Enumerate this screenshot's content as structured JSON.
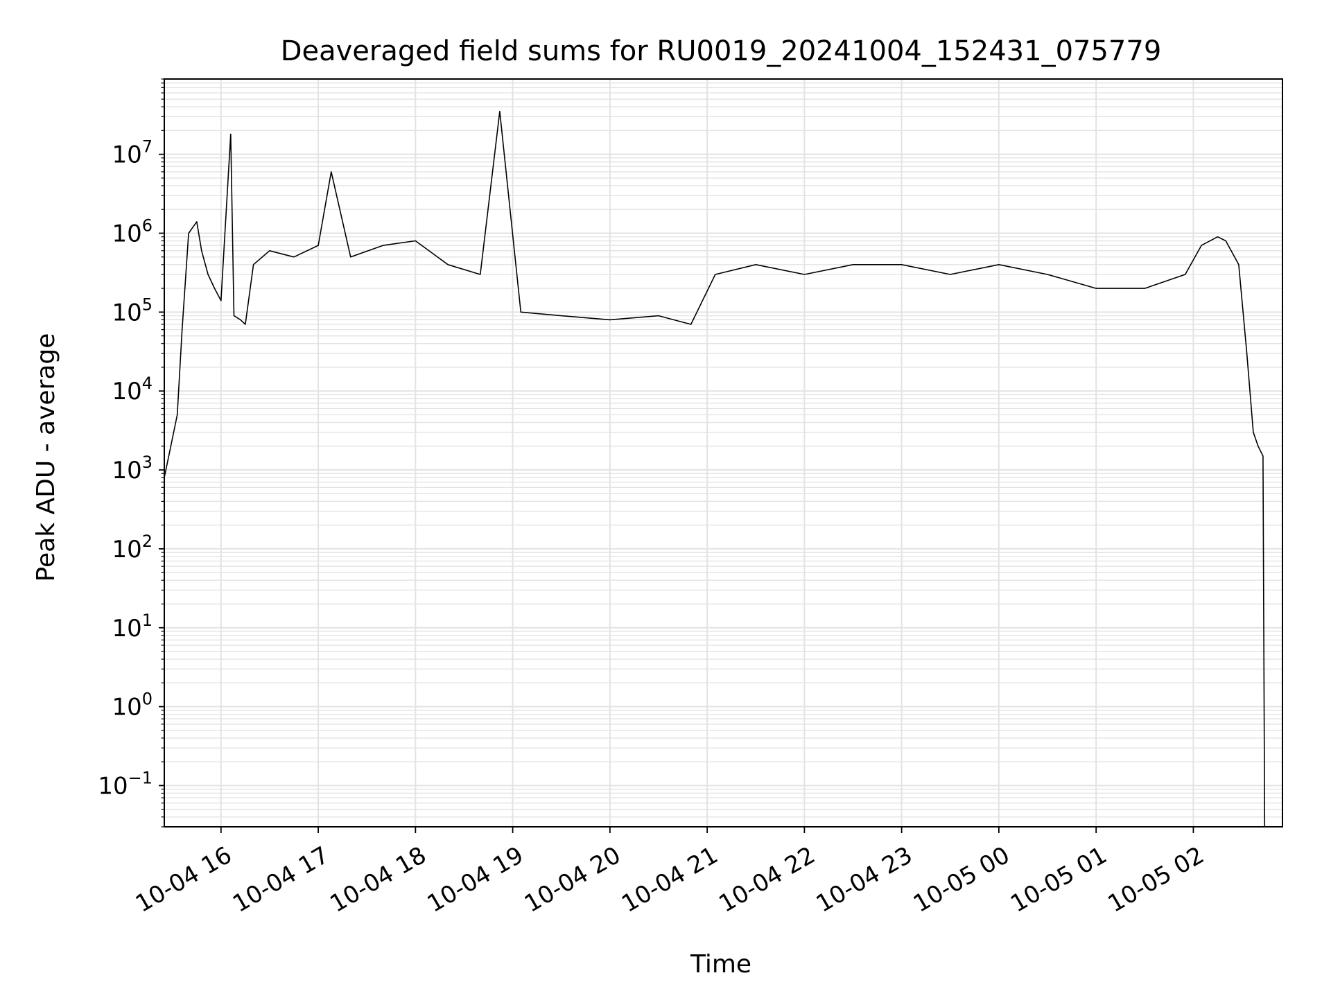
{
  "chart_data": {
    "type": "line",
    "title": "Deaveraged field sums for RU0019_20241004_152431_075779",
    "xlabel": "Time",
    "ylabel": "Peak ADU - average",
    "yscale": "log",
    "ylim": [
      0.03,
      90000000
    ],
    "xlim": [
      "2024-10-04 15:25",
      "2024-10-05 02:55"
    ],
    "grid": true,
    "line_color": "#000000",
    "grid_color": "#e3e3e3",
    "x_ticks": [
      {
        "value": "2024-10-04 16:00",
        "label": "10-04 16"
      },
      {
        "value": "2024-10-04 17:00",
        "label": "10-04 17"
      },
      {
        "value": "2024-10-04 18:00",
        "label": "10-04 18"
      },
      {
        "value": "2024-10-04 19:00",
        "label": "10-04 19"
      },
      {
        "value": "2024-10-04 20:00",
        "label": "10-04 20"
      },
      {
        "value": "2024-10-04 21:00",
        "label": "10-04 21"
      },
      {
        "value": "2024-10-04 22:00",
        "label": "10-04 22"
      },
      {
        "value": "2024-10-04 23:00",
        "label": "10-04 23"
      },
      {
        "value": "2024-10-05 00:00",
        "label": "10-05 00"
      },
      {
        "value": "2024-10-05 01:00",
        "label": "10-05 01"
      },
      {
        "value": "2024-10-05 02:00",
        "label": "10-05 02"
      }
    ],
    "y_ticks": [
      {
        "value": 0.1,
        "base": "10",
        "exp": "−1"
      },
      {
        "value": 1,
        "base": "10",
        "exp": "0"
      },
      {
        "value": 10,
        "base": "10",
        "exp": "1"
      },
      {
        "value": 100,
        "base": "10",
        "exp": "2"
      },
      {
        "value": 1000,
        "base": "10",
        "exp": "3"
      },
      {
        "value": 10000,
        "base": "10",
        "exp": "4"
      },
      {
        "value": 100000,
        "base": "10",
        "exp": "5"
      },
      {
        "value": 1000000,
        "base": "10",
        "exp": "6"
      },
      {
        "value": 10000000,
        "base": "10",
        "exp": "7"
      }
    ],
    "series": [
      {
        "x": [
          "2024-10-04 15:25",
          "2024-10-04 15:29",
          "2024-10-04 15:33",
          "2024-10-04 15:36",
          "2024-10-04 15:40",
          "2024-10-04 15:45",
          "2024-10-04 15:48",
          "2024-10-04 15:52",
          "2024-10-04 15:56",
          "2024-10-04 16:00",
          "2024-10-04 16:06",
          "2024-10-04 16:08",
          "2024-10-04 16:12",
          "2024-10-04 16:15",
          "2024-10-04 16:20",
          "2024-10-04 16:30",
          "2024-10-04 16:45",
          "2024-10-04 17:00",
          "2024-10-04 17:08",
          "2024-10-04 17:20",
          "2024-10-04 17:40",
          "2024-10-04 18:00",
          "2024-10-04 18:20",
          "2024-10-04 18:40",
          "2024-10-04 18:52",
          "2024-10-04 19:05",
          "2024-10-04 19:30",
          "2024-10-04 20:00",
          "2024-10-04 20:30",
          "2024-10-04 20:50",
          "2024-10-04 21:05",
          "2024-10-04 21:30",
          "2024-10-04 22:00",
          "2024-10-04 22:30",
          "2024-10-04 23:00",
          "2024-10-04 23:30",
          "2024-10-05 00:00",
          "2024-10-05 00:30",
          "2024-10-05 01:00",
          "2024-10-05 01:30",
          "2024-10-05 01:55",
          "2024-10-05 02:05",
          "2024-10-05 02:15",
          "2024-10-05 02:20",
          "2024-10-05 02:28",
          "2024-10-05 02:33",
          "2024-10-05 02:37",
          "2024-10-05 02:40",
          "2024-10-05 02:43",
          "2024-10-05 02:44"
        ],
        "y": [
          800,
          2000,
          5000,
          60000,
          1000000,
          1400000,
          600000,
          300000,
          200000,
          140000,
          18000000,
          90000,
          80000,
          70000,
          400000,
          600000,
          500000,
          700000,
          6000000,
          500000,
          700000,
          800000,
          400000,
          300000,
          35000000,
          100000,
          90000,
          80000,
          90000,
          70000,
          300000,
          400000,
          300000,
          400000,
          400000,
          300000,
          400000,
          300000,
          200000,
          200000,
          300000,
          700000,
          900000,
          800000,
          400000,
          30000,
          3000,
          2000,
          1500,
          0.03
        ]
      }
    ]
  }
}
